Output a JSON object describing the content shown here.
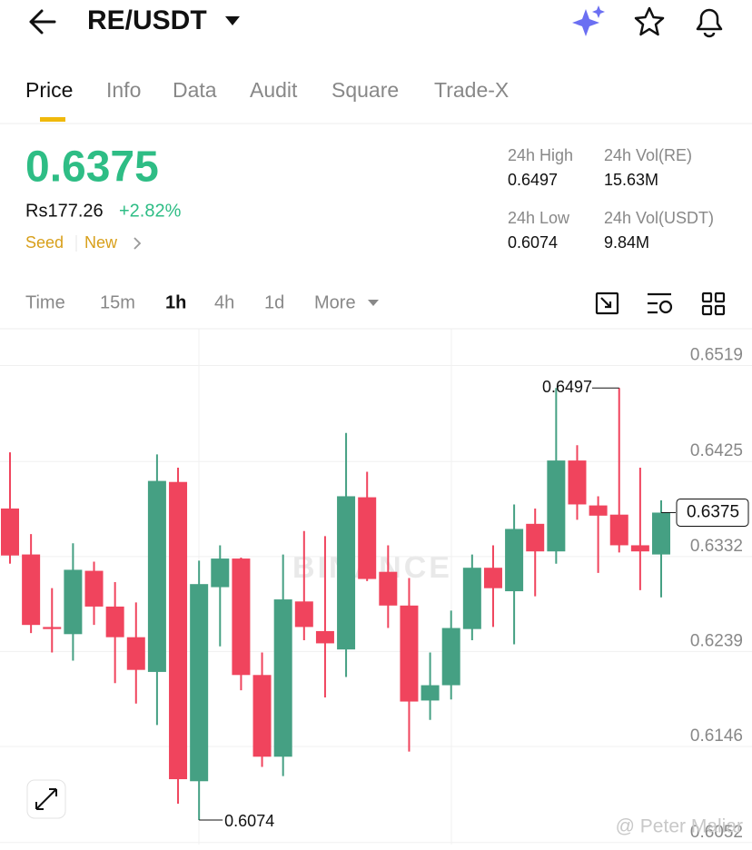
{
  "header": {
    "pair": "RE/USDT"
  },
  "tabs": [
    "Price",
    "Info",
    "Data",
    "Audit",
    "Square",
    "Trade-X"
  ],
  "price": {
    "last": "0.6375",
    "fiat": "Rs177.26",
    "change": "+2.82%",
    "tags": [
      "Seed",
      "New"
    ]
  },
  "stats": [
    {
      "label": "24h High",
      "value": "0.6497"
    },
    {
      "label": "24h Vol(RE)",
      "value": "15.63M"
    },
    {
      "label": "24h Low",
      "value": "0.6074"
    },
    {
      "label": "24h Vol(USDT)",
      "value": "9.84M"
    }
  ],
  "intervals": [
    "Time",
    "15m",
    "1h",
    "4h",
    "1d",
    "More"
  ],
  "chart_data": {
    "type": "candlestick",
    "open": [
      0.6379,
      0.6334,
      0.6263,
      0.6256,
      0.6318,
      0.6283,
      0.6253,
      0.6219,
      0.6405,
      0.6112,
      0.6302,
      0.633,
      0.6216,
      0.6136,
      0.6288,
      0.6259,
      0.6241,
      0.639,
      0.6317,
      0.6284,
      0.6191,
      0.6206,
      0.6261,
      0.6321,
      0.6298,
      0.6364,
      0.6337,
      0.6426,
      0.6382,
      0.6373,
      0.6343,
      0.6334
    ],
    "high": [
      0.6434,
      0.6354,
      0.6301,
      0.6345,
      0.6327,
      0.6307,
      0.6287,
      0.6432,
      0.6419,
      0.6328,
      0.6343,
      0.6331,
      0.6238,
      0.6334,
      0.6357,
      0.6352,
      0.6453,
      0.6415,
      0.6343,
      0.6311,
      0.6238,
      0.6279,
      0.6334,
      0.6343,
      0.6383,
      0.6379,
      0.6497,
      0.6441,
      0.6391,
      0.6497,
      0.6419,
      0.6387
    ],
    "low": [
      0.6325,
      0.6257,
      0.6238,
      0.623,
      0.6265,
      0.6208,
      0.6188,
      0.6167,
      0.609,
      0.6074,
      0.6244,
      0.6201,
      0.6126,
      0.6117,
      0.625,
      0.6194,
      0.6214,
      0.6308,
      0.6262,
      0.6141,
      0.6172,
      0.6192,
      0.625,
      0.6263,
      0.6246,
      0.6293,
      0.6325,
      0.6368,
      0.6316,
      0.6336,
      0.6299,
      0.6292
    ],
    "close": [
      0.6333,
      0.6265,
      0.6261,
      0.6319,
      0.6283,
      0.6253,
      0.6221,
      0.6406,
      0.6114,
      0.6305,
      0.633,
      0.6216,
      0.6136,
      0.629,
      0.6263,
      0.6247,
      0.6391,
      0.631,
      0.6284,
      0.619,
      0.6206,
      0.6262,
      0.6321,
      0.6301,
      0.6359,
      0.6337,
      0.6426,
      0.6383,
      0.6372,
      0.6343,
      0.6337,
      0.6375
    ],
    "up_color": "#45a083",
    "down_color": "#f0445d",
    "ylim": [
      0.605,
      0.6555
    ],
    "yticks": [
      0.6052,
      0.6146,
      0.6239,
      0.6332,
      0.6425,
      0.6519
    ],
    "grid": true,
    "last_price": 0.6375,
    "watermark": "BINANCE",
    "credit": "@ Peter Maliar"
  }
}
